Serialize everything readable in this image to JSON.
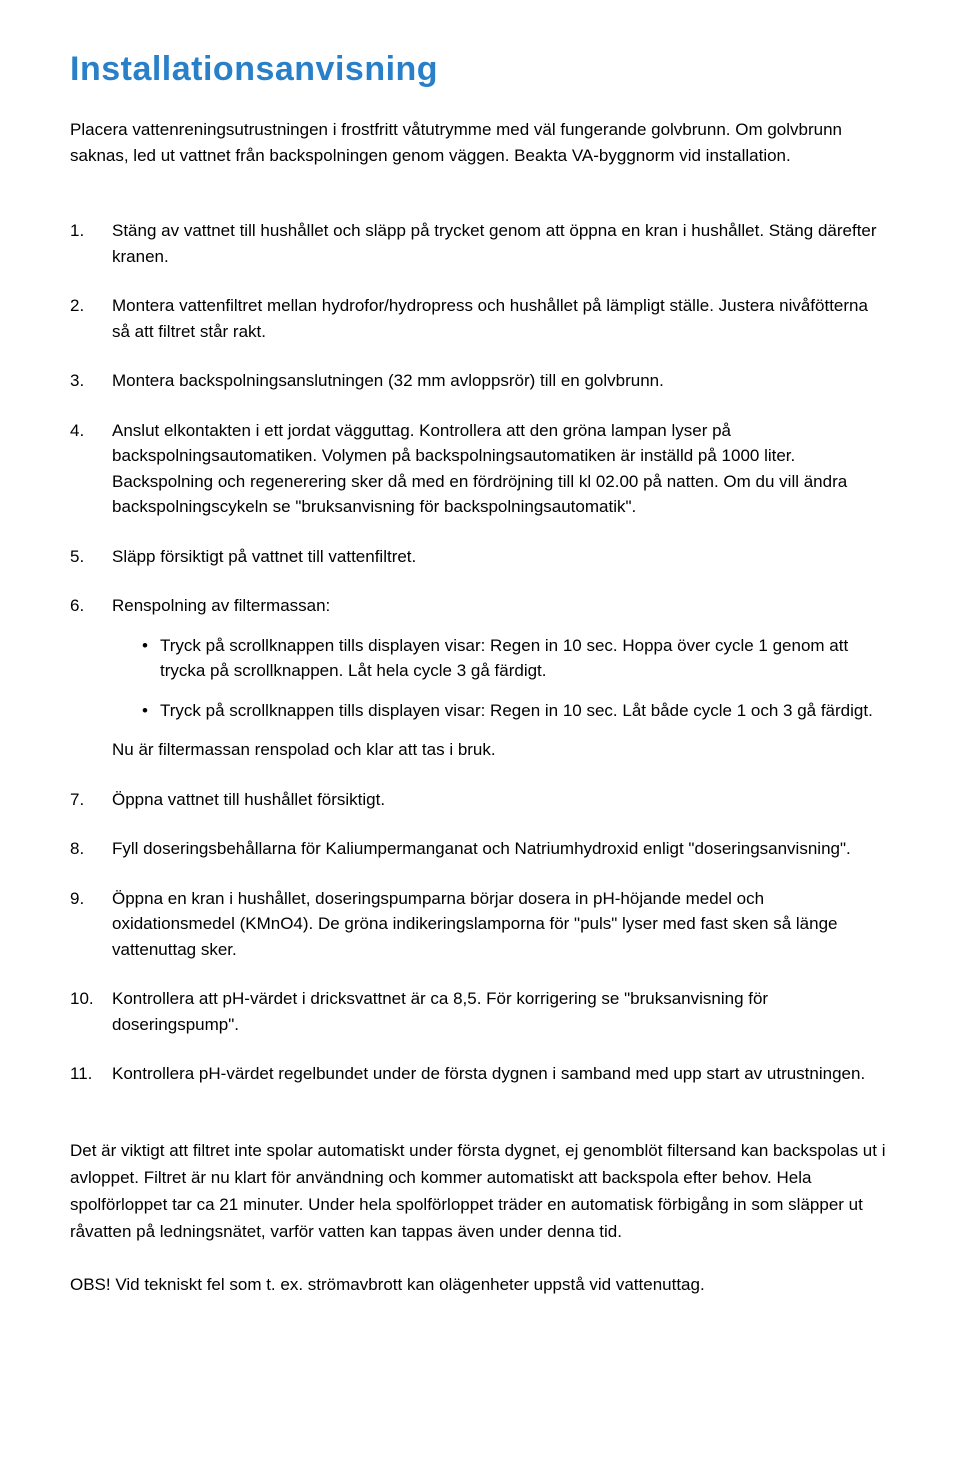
{
  "title": "Installationsanvisning",
  "intro": "Placera vattenreningsutrustningen i frostfritt våtutrymme med väl fungerande golvbrunn. Om golvbrunn saknas, led ut vattnet från backspolningen genom väggen. Beakta VA-byggnorm vid installation.",
  "steps": [
    {
      "num": "1.",
      "text": "Stäng av vattnet till hushållet och släpp på trycket genom att öppna en kran i hushållet. Stäng därefter kranen."
    },
    {
      "num": "2.",
      "text": "Montera vattenfiltret mellan hydrofor/hydropress och hushållet på lämpligt ställe. Justera nivåfötterna så att filtret står rakt."
    },
    {
      "num": "3.",
      "text": "Montera backspolningsanslutningen (32 mm avloppsrör) till en golvbrunn."
    },
    {
      "num": "4.",
      "text": "Anslut elkontakten i ett jordat vägguttag. Kontrollera att den gröna lampan lyser på backspolningsautomatiken. Volymen på backspolningsautomatiken är inställd på 1000 liter. Backspolning och regenerering sker då med en fördröjning till kl 02.00 på natten. Om du vill ändra backspolningscykeln se \"bruksanvisning för backspolningsautomatik\"."
    },
    {
      "num": "5.",
      "text": "Släpp försiktigt på vattnet till vattenfiltret."
    },
    {
      "num": "6.",
      "text": "Renspolning av filtermassan:",
      "sub": [
        "Tryck på scrollknappen tills displayen visar: Regen in 10 sec. Hoppa över cycle 1 genom att trycka på scrollknappen. Låt hela cycle 3 gå färdigt.",
        "Tryck på scrollknappen tills displayen visar: Regen in 10 sec. Låt både cycle 1 och 3 gå färdigt."
      ],
      "after": "Nu är filtermassan renspolad och klar att tas i bruk."
    },
    {
      "num": "7.",
      "text": "Öppna vattnet till hushållet försiktigt."
    },
    {
      "num": "8.",
      "text": "Fyll  doseringsbehållarna för Kaliumpermanganat och Natriumhydroxid enligt \"doseringsanvisning\"."
    },
    {
      "num": "9.",
      "text": "Öppna en kran i hushållet, doseringspumparna börjar dosera in pH-höjande medel och oxidationsmedel (KMnO4). De gröna indikeringslamporna för \"puls\" lyser med fast sken så länge vattenuttag sker."
    },
    {
      "num": "10.",
      "text": "Kontrollera att pH-värdet i dricksvattnet är ca 8,5. För korrigering se \"bruksanvisning för doseringspump\"."
    },
    {
      "num": "11.",
      "text": "Kontrollera pH-värdet regelbundet under de första dygnen i samband med upp start av utrustningen."
    }
  ],
  "footer": "Det är viktigt att filtret inte spolar automatiskt under första dygnet, ej genomblöt filtersand kan backspolas ut i avloppet. Filtret är nu klart för användning och kommer automatiskt att backspola efter behov. Hela spolförloppet tar ca 21 minuter. Under hela spolförloppet träder en automatisk förbigång in som släpper ut råvatten på ledningsnätet, varför vatten kan tappas även under denna tid.",
  "obs": "OBS! Vid tekniskt fel som t. ex. strömavbrott kan olägenheter uppstå vid vattenuttag.",
  "colors": {
    "title": "#2980c9",
    "text": "#000000",
    "background": "#ffffff"
  },
  "typography": {
    "title_fontsize": 34,
    "body_fontsize": 17,
    "font_family": "Helvetica Neue"
  }
}
